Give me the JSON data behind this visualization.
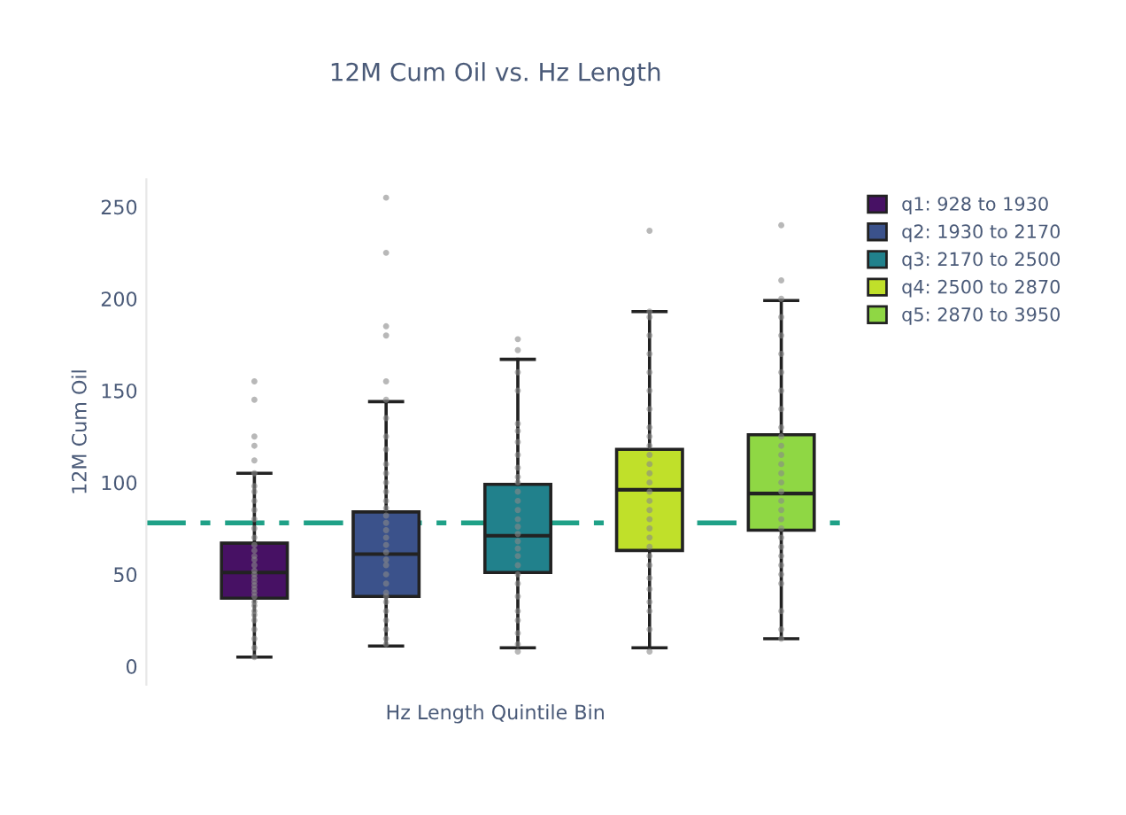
{
  "chart_data": {
    "type": "box",
    "title": "12M Cum Oil vs. Hz Length",
    "xlabel": "Hz Length Quintile Bin",
    "ylabel": "12M Cum Oil",
    "categories": [
      null,
      null,
      null,
      null,
      null
    ],
    "ylim": [
      -10,
      265
    ],
    "yticks": [
      0,
      50,
      100,
      150,
      200,
      250
    ],
    "tick_labels": "y",
    "grid": false,
    "legend": "top right",
    "series": [
      {
        "name": "q1: 928 to 1930",
        "color": "#471164",
        "boxes": [
          {
            "low": 5,
            "q1": 37,
            "median": 51,
            "q3": 67,
            "high": 105,
            "outliers": [
              5,
              10,
              15,
              20,
              25,
              28,
              30,
              33,
              35,
              38,
              40,
              42,
              44,
              46,
              48,
              50,
              52,
              55,
              58,
              60,
              63,
              66,
              70,
              75,
              80,
              85,
              90,
              95,
              98,
              105,
              112,
              120,
              125,
              145,
              155
            ]
          },
          null,
          null,
          null,
          null
        ]
      },
      {
        "name": "q2: 1930 to 2170",
        "color": "#3b528b",
        "boxes": [
          null,
          {
            "low": 11,
            "q1": 38,
            "median": 61,
            "q3": 84,
            "high": 144,
            "outliers": [
              12,
              15,
              20,
              25,
              30,
              35,
              38,
              40,
              45,
              50,
              55,
              58,
              62,
              66,
              70,
              74,
              78,
              82,
              86,
              90,
              95,
              100,
              105,
              110,
              118,
              125,
              135,
              145,
              155,
              180,
              185,
              225,
              255
            ]
          },
          null,
          null,
          null
        ]
      },
      {
        "name": "q3: 2170 to 2500",
        "color": "#21818c",
        "boxes": [
          null,
          null,
          {
            "low": 10,
            "q1": 51,
            "median": 71,
            "q3": 99,
            "high": 167,
            "outliers": [
              8,
              12,
              18,
              25,
              30,
              38,
              45,
              50,
              55,
              60,
              64,
              68,
              72,
              76,
              80,
              85,
              90,
              95,
              100,
              103,
              108,
              115,
              122,
              128,
              132,
              150,
              160,
              172,
              178
            ]
          },
          null,
          null
        ]
      },
      {
        "name": "q4: 2500 to 2870",
        "color": "#c0e02a",
        "boxes": [
          null,
          null,
          null,
          {
            "low": 10,
            "q1": 63,
            "median": 96,
            "q3": 118,
            "high": 193,
            "outliers": [
              8,
              20,
              30,
              35,
              42,
              48,
              55,
              60,
              65,
              70,
              75,
              80,
              85,
              90,
              95,
              100,
              105,
              110,
              115,
              120,
              125,
              130,
              140,
              150,
              160,
              170,
              180,
              190,
              193,
              237
            ]
          },
          null
        ]
      },
      {
        "name": "q5: 2870 to 3950",
        "color": "#8fd744",
        "boxes": [
          null,
          null,
          null,
          null,
          {
            "low": 15,
            "q1": 74,
            "median": 94,
            "q3": 126,
            "high": 199,
            "outliers": [
              15,
              20,
              30,
              45,
              50,
              55,
              60,
              65,
              70,
              75,
              80,
              85,
              90,
              95,
              100,
              105,
              110,
              115,
              120,
              125,
              130,
              140,
              150,
              160,
              170,
              180,
              190,
              200,
              210,
              240
            ]
          }
        ]
      }
    ],
    "ref_lines": [
      {
        "axis": "y",
        "value": 78,
        "color": "#1fa187",
        "line_style": "dashed"
      }
    ]
  }
}
